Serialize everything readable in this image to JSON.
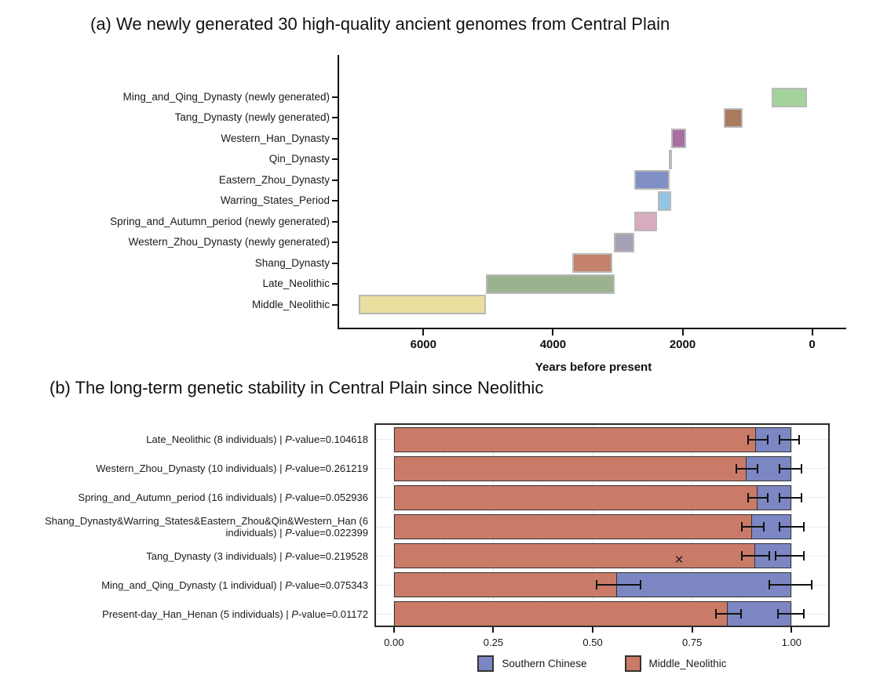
{
  "background": "#ffffff",
  "labels_format": {
    "separator": " | ",
    "p_symbol": "P",
    "p_prefix": "-value="
  },
  "chart_data": [
    {
      "type": "bar",
      "subtype": "timeline",
      "title": "(a) We newly generated 30 high-quality ancient genomes from Central Plain",
      "xlabel": "Years before present",
      "xlim": [
        7300,
        -550
      ],
      "grid": false,
      "bar_border_color": "#b9b9b9",
      "axis_color": "#111111",
      "xticks": [
        {
          "label": "6000",
          "year": 6000
        },
        {
          "label": "4000",
          "year": 4000
        },
        {
          "label": "2000",
          "year": 2000
        },
        {
          "label": "0",
          "year": 0
        }
      ],
      "rows": [
        {
          "label": "Ming_and_Qing_Dynasty (newly generated)",
          "start_bp": 620,
          "end_bp": 80,
          "color": "#a3d39b"
        },
        {
          "label": "Tang_Dynasty (newly generated)",
          "start_bp": 1370,
          "end_bp": 1070,
          "color": "#ab7a5f"
        },
        {
          "label": "Western_Han_Dynasty",
          "start_bp": 2180,
          "end_bp": 1940,
          "color": "#a770a3"
        },
        {
          "label": "Qin_Dynasty",
          "start_bp": 2210,
          "end_bp": 2160,
          "color": "#d6d6d6"
        },
        {
          "label": "Eastern_Zhou_Dynasty",
          "start_bp": 2750,
          "end_bp": 2200,
          "color": "#8090c7"
        },
        {
          "label": "Warring_States_Period",
          "start_bp": 2380,
          "end_bp": 2180,
          "color": "#92c6e2"
        },
        {
          "label": "Spring_and_Autumn_period (newly generated)",
          "start_bp": 2750,
          "end_bp": 2390,
          "color": "#d9abbe"
        },
        {
          "label": "Western_Zhou_Dynasty (newly generated)",
          "start_bp": 3060,
          "end_bp": 2750,
          "color": "#a7a1b5"
        },
        {
          "label": "Shang_Dynasty",
          "start_bp": 3700,
          "end_bp": 3080,
          "color": "#c5826a"
        },
        {
          "label": "Late_Neolithic",
          "start_bp": 5030,
          "end_bp": 3050,
          "color": "#9cb28f"
        },
        {
          "label": "Middle_Neolithic",
          "start_bp": 7000,
          "end_bp": 5030,
          "color": "#ebdf9f"
        }
      ]
    },
    {
      "type": "bar",
      "subtype": "stacked-horizontal",
      "title": "(b) The long-term genetic stability in Central Plain since Neolithic",
      "xlim": [
        -0.045,
        1.1
      ],
      "grid": true,
      "bar_border_color": "#333333",
      "series_colors": {
        "southern_chinese": "#7b86c2",
        "middle_neolithic": "#c97b68"
      },
      "legend": [
        {
          "key": "southern_chinese",
          "label": "Southern Chinese"
        },
        {
          "key": "middle_neolithic",
          "label": "Middle_Neolithic"
        }
      ],
      "xticks": [
        {
          "label": "0.00",
          "value": 0.0
        },
        {
          "label": "0.25",
          "value": 0.25
        },
        {
          "label": "0.50",
          "value": 0.5
        },
        {
          "label": "0.75",
          "value": 0.75
        },
        {
          "label": "1.00",
          "value": 1.0
        }
      ],
      "rows": [
        {
          "name": "Late_Neolithic",
          "count": "8 individuals",
          "pvalue": "0.104618",
          "middle_neolithic": 0.912,
          "southern_chinese": 0.088,
          "mn_ci": [
            0.89,
            0.94
          ],
          "total_ci": [
            0.97,
            1.02
          ]
        },
        {
          "name": "Western_Zhou_Dynasty",
          "count": "10 individuals",
          "pvalue": "0.261219",
          "middle_neolithic": 0.887,
          "southern_chinese": 0.113,
          "mn_ci": [
            0.862,
            0.915
          ],
          "total_ci": [
            0.97,
            1.025
          ]
        },
        {
          "name": "Spring_and_Autumn_period",
          "count": "16 individuals",
          "pvalue": "0.052936",
          "middle_neolithic": 0.915,
          "southern_chinese": 0.085,
          "mn_ci": [
            0.89,
            0.94
          ],
          "total_ci": [
            0.97,
            1.025
          ]
        },
        {
          "name": "Shang_Dynasty&Warring_States&Eastern_Zhou&Qin&Western_Han",
          "count": "6 individuals",
          "pvalue": "0.022399",
          "middle_neolithic": 0.901,
          "southern_chinese": 0.099,
          "mn_ci": [
            0.874,
            0.93
          ],
          "total_ci": [
            0.97,
            1.03
          ]
        },
        {
          "name": "Tang_Dynasty",
          "count": "3 individuals",
          "pvalue": "0.219528",
          "middle_neolithic": 0.909,
          "southern_chinese": 0.091,
          "mn_ci": [
            0.875,
            0.945
          ],
          "total_ci": [
            0.96,
            1.03
          ],
          "marker_x": 0.72
        },
        {
          "name": "Ming_and_Qing_Dynasty",
          "count": "1 individual",
          "pvalue": "0.075343",
          "middle_neolithic": 0.563,
          "southern_chinese": 0.437,
          "mn_ci": [
            0.51,
            0.62
          ],
          "total_ci": [
            0.945,
            1.05
          ]
        },
        {
          "name": "Present-day_Han_Henan",
          "count": "5 individuals",
          "pvalue": "0.01172",
          "middle_neolithic": 0.84,
          "southern_chinese": 0.16,
          "mn_ci": [
            0.81,
            0.873
          ],
          "total_ci": [
            0.965,
            1.03
          ]
        }
      ]
    }
  ]
}
